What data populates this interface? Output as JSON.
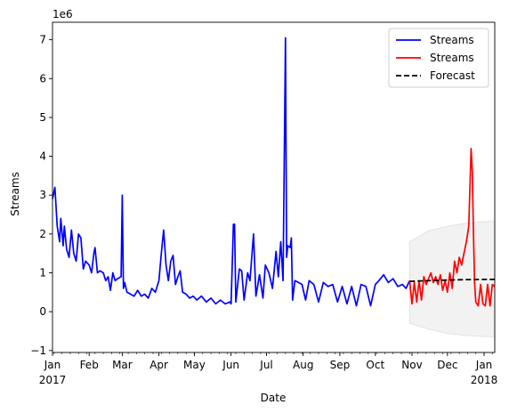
{
  "chart_data": {
    "type": "line",
    "title": "",
    "xlabel": "Date",
    "ylabel": "Streams",
    "y_offset_label": "1e6",
    "xlim": [
      "2017-01-01",
      "2018-01-10"
    ],
    "ylim": [
      -1050000,
      7450000
    ],
    "y_ticks": [
      -1,
      0,
      1,
      2,
      3,
      4,
      5,
      6,
      7
    ],
    "x_ticks": [
      {
        "date": "2017-01-01",
        "label": "Jan",
        "sublabel": "2017"
      },
      {
        "date": "2017-02-01",
        "label": "Feb"
      },
      {
        "date": "2017-03-01",
        "label": "Mar"
      },
      {
        "date": "2017-04-01",
        "label": "Apr"
      },
      {
        "date": "2017-05-01",
        "label": "May"
      },
      {
        "date": "2017-06-01",
        "label": "Jun"
      },
      {
        "date": "2017-07-01",
        "label": "Jul"
      },
      {
        "date": "2017-08-01",
        "label": "Aug"
      },
      {
        "date": "2017-09-01",
        "label": "Sep"
      },
      {
        "date": "2017-10-01",
        "label": "Oct"
      },
      {
        "date": "2017-11-01",
        "label": "Nov"
      },
      {
        "date": "2017-12-01",
        "label": "Dec"
      },
      {
        "date": "2018-01-01",
        "label": "Jan",
        "sublabel": "2018"
      }
    ],
    "legend_position": "top-right",
    "grid": false,
    "series": [
      {
        "name": "Streams",
        "color": "#0000ff",
        "style": "solid",
        "points": [
          [
            "2017-01-01",
            2900000
          ],
          [
            "2017-01-03",
            3200000
          ],
          [
            "2017-01-05",
            2200000
          ],
          [
            "2017-01-07",
            1800000
          ],
          [
            "2017-01-08",
            2400000
          ],
          [
            "2017-01-10",
            1700000
          ],
          [
            "2017-01-11",
            2200000
          ],
          [
            "2017-01-13",
            1600000
          ],
          [
            "2017-01-15",
            1400000
          ],
          [
            "2017-01-17",
            2100000
          ],
          [
            "2017-01-19",
            1500000
          ],
          [
            "2017-01-21",
            1300000
          ],
          [
            "2017-01-23",
            2000000
          ],
          [
            "2017-01-25",
            1900000
          ],
          [
            "2017-01-27",
            1100000
          ],
          [
            "2017-01-29",
            1300000
          ],
          [
            "2017-02-01",
            1200000
          ],
          [
            "2017-02-03",
            1000000
          ],
          [
            "2017-02-05",
            1500000
          ],
          [
            "2017-02-06",
            1650000
          ],
          [
            "2017-02-08",
            1000000
          ],
          [
            "2017-02-10",
            1050000
          ],
          [
            "2017-02-13",
            1000000
          ],
          [
            "2017-02-15",
            800000
          ],
          [
            "2017-02-17",
            900000
          ],
          [
            "2017-02-19",
            550000
          ],
          [
            "2017-02-21",
            1000000
          ],
          [
            "2017-02-23",
            800000
          ],
          [
            "2017-02-25",
            850000
          ],
          [
            "2017-02-28",
            900000
          ],
          [
            "2017-03-01",
            3000000
          ],
          [
            "2017-03-02",
            600000
          ],
          [
            "2017-03-03",
            750000
          ],
          [
            "2017-03-05",
            500000
          ],
          [
            "2017-03-08",
            450000
          ],
          [
            "2017-03-11",
            400000
          ],
          [
            "2017-03-14",
            550000
          ],
          [
            "2017-03-17",
            400000
          ],
          [
            "2017-03-20",
            450000
          ],
          [
            "2017-03-23",
            350000
          ],
          [
            "2017-03-26",
            600000
          ],
          [
            "2017-03-29",
            500000
          ],
          [
            "2017-04-01",
            800000
          ],
          [
            "2017-04-03",
            1500000
          ],
          [
            "2017-04-05",
            2100000
          ],
          [
            "2017-04-07",
            1200000
          ],
          [
            "2017-04-09",
            800000
          ],
          [
            "2017-04-11",
            1300000
          ],
          [
            "2017-04-13",
            1450000
          ],
          [
            "2017-04-15",
            700000
          ],
          [
            "2017-04-17",
            900000
          ],
          [
            "2017-04-19",
            1050000
          ],
          [
            "2017-04-21",
            500000
          ],
          [
            "2017-04-24",
            450000
          ],
          [
            "2017-04-27",
            350000
          ],
          [
            "2017-04-30",
            400000
          ],
          [
            "2017-05-03",
            300000
          ],
          [
            "2017-05-07",
            400000
          ],
          [
            "2017-05-11",
            250000
          ],
          [
            "2017-05-15",
            350000
          ],
          [
            "2017-05-19",
            200000
          ],
          [
            "2017-05-23",
            300000
          ],
          [
            "2017-05-27",
            200000
          ],
          [
            "2017-05-31",
            250000
          ],
          [
            "2017-06-01",
            200000
          ],
          [
            "2017-06-03",
            2250000
          ],
          [
            "2017-06-04",
            2250000
          ],
          [
            "2017-06-05",
            250000
          ],
          [
            "2017-06-08",
            1100000
          ],
          [
            "2017-06-10",
            1050000
          ],
          [
            "2017-06-12",
            300000
          ],
          [
            "2017-06-15",
            1000000
          ],
          [
            "2017-06-17",
            800000
          ],
          [
            "2017-06-20",
            2000000
          ],
          [
            "2017-06-22",
            400000
          ],
          [
            "2017-06-25",
            950000
          ],
          [
            "2017-06-28",
            350000
          ],
          [
            "2017-06-30",
            1200000
          ],
          [
            "2017-07-03",
            1000000
          ],
          [
            "2017-07-06",
            600000
          ],
          [
            "2017-07-09",
            1550000
          ],
          [
            "2017-07-11",
            900000
          ],
          [
            "2017-07-13",
            1800000
          ],
          [
            "2017-07-15",
            800000
          ],
          [
            "2017-07-17",
            7050000
          ],
          [
            "2017-07-18",
            1400000
          ],
          [
            "2017-07-19",
            1700000
          ],
          [
            "2017-07-21",
            1650000
          ],
          [
            "2017-07-22",
            1900000
          ],
          [
            "2017-07-23",
            300000
          ],
          [
            "2017-07-25",
            800000
          ],
          [
            "2017-07-28",
            750000
          ],
          [
            "2017-07-31",
            700000
          ],
          [
            "2017-08-03",
            300000
          ],
          [
            "2017-08-06",
            800000
          ],
          [
            "2017-08-10",
            700000
          ],
          [
            "2017-08-14",
            250000
          ],
          [
            "2017-08-18",
            750000
          ],
          [
            "2017-08-22",
            650000
          ],
          [
            "2017-08-26",
            700000
          ],
          [
            "2017-08-30",
            250000
          ],
          [
            "2017-09-03",
            650000
          ],
          [
            "2017-09-07",
            200000
          ],
          [
            "2017-09-11",
            650000
          ],
          [
            "2017-09-15",
            150000
          ],
          [
            "2017-09-19",
            700000
          ],
          [
            "2017-09-23",
            650000
          ],
          [
            "2017-09-27",
            150000
          ],
          [
            "2017-10-01",
            700000
          ],
          [
            "2017-10-04",
            800000
          ],
          [
            "2017-10-08",
            950000
          ],
          [
            "2017-10-12",
            750000
          ],
          [
            "2017-10-16",
            850000
          ],
          [
            "2017-10-20",
            650000
          ],
          [
            "2017-10-24",
            700000
          ],
          [
            "2017-10-27",
            600000
          ],
          [
            "2017-10-30",
            800000
          ]
        ]
      },
      {
        "name": "Streams",
        "color": "#ff0000",
        "style": "solid",
        "points": [
          [
            "2017-10-30",
            800000
          ],
          [
            "2017-11-01",
            200000
          ],
          [
            "2017-11-03",
            750000
          ],
          [
            "2017-11-05",
            250000
          ],
          [
            "2017-11-07",
            800000
          ],
          [
            "2017-11-09",
            300000
          ],
          [
            "2017-11-11",
            900000
          ],
          [
            "2017-11-13",
            700000
          ],
          [
            "2017-11-15",
            850000
          ],
          [
            "2017-11-17",
            1000000
          ],
          [
            "2017-11-19",
            750000
          ],
          [
            "2017-11-21",
            900000
          ],
          [
            "2017-11-23",
            700000
          ],
          [
            "2017-11-25",
            950000
          ],
          [
            "2017-11-27",
            550000
          ],
          [
            "2017-11-29",
            800000
          ],
          [
            "2017-12-01",
            500000
          ],
          [
            "2017-12-03",
            1000000
          ],
          [
            "2017-12-05",
            600000
          ],
          [
            "2017-12-07",
            1300000
          ],
          [
            "2017-12-09",
            1000000
          ],
          [
            "2017-12-11",
            1400000
          ],
          [
            "2017-12-13",
            1200000
          ],
          [
            "2017-12-15",
            1500000
          ],
          [
            "2017-12-17",
            1800000
          ],
          [
            "2017-12-19",
            2200000
          ],
          [
            "2017-12-21",
            4200000
          ],
          [
            "2017-12-22",
            3600000
          ],
          [
            "2017-12-23",
            2000000
          ],
          [
            "2017-12-24",
            700000
          ],
          [
            "2017-12-25",
            250000
          ],
          [
            "2017-12-27",
            150000
          ],
          [
            "2017-12-29",
            700000
          ],
          [
            "2017-12-31",
            200000
          ],
          [
            "2018-01-02",
            150000
          ],
          [
            "2018-01-04",
            700000
          ],
          [
            "2018-01-06",
            150000
          ],
          [
            "2018-01-08",
            700000
          ],
          [
            "2018-01-10",
            650000
          ]
        ]
      },
      {
        "name": "Forecast",
        "color": "#000000",
        "style": "dashed",
        "points": [
          [
            "2017-10-30",
            780000
          ],
          [
            "2017-11-15",
            800000
          ],
          [
            "2017-12-01",
            815000
          ],
          [
            "2017-12-15",
            825000
          ],
          [
            "2018-01-01",
            830000
          ],
          [
            "2018-01-10",
            832000
          ]
        ]
      }
    ],
    "confidence_band": {
      "color": "#cccccc",
      "opacity": 0.25,
      "points": [
        [
          "2017-10-30",
          1800000,
          -300000
        ],
        [
          "2017-11-15",
          2080000,
          -450000
        ],
        [
          "2017-12-01",
          2200000,
          -560000
        ],
        [
          "2017-12-15",
          2270000,
          -610000
        ],
        [
          "2018-01-01",
          2320000,
          -640000
        ],
        [
          "2018-01-10",
          2330000,
          -650000
        ]
      ]
    }
  }
}
